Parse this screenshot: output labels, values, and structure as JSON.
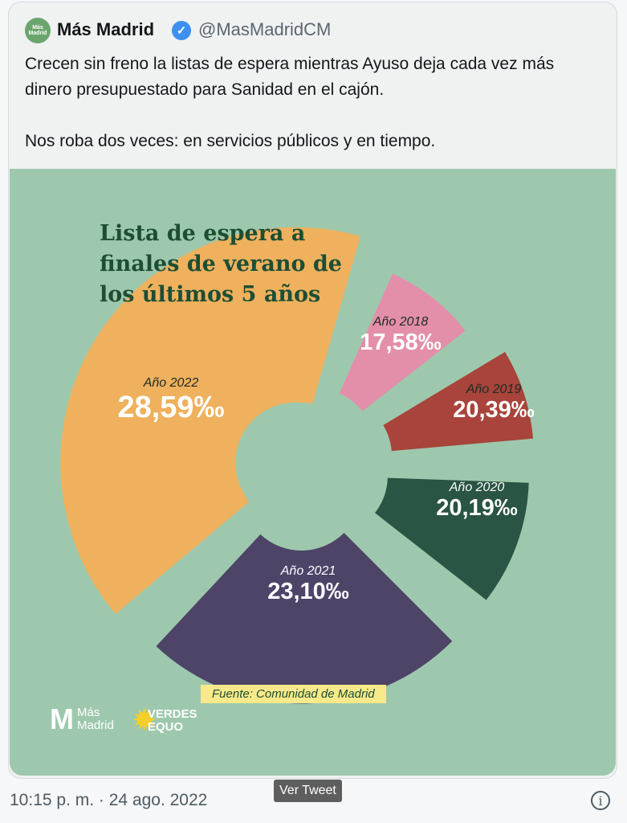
{
  "tweet": {
    "avatar_text": "Más Madrid",
    "author_name": "Más Madrid",
    "handle": "@MasMadridCM",
    "text_lines": [
      "Crecen sin freno la listas de espera mientras Ayuso deja cada vez más dinero presupuestado para Sanidad en el cajón.",
      "Nos roba dos veces: en servicios públicos y en tiempo."
    ],
    "timestamp": "10:15 p. m. · 24 ago. 2022",
    "tooltip": "Ver Tweet"
  },
  "image": {
    "source": "Fuente: Comunidad de Madrid",
    "logo_mas_madrid": "Más Madrid",
    "logo_verdes_equo": "VERDES EQUO"
  },
  "chart_data": {
    "type": "pie",
    "title": "Lista de espera a finales de verano de los últimos 5 años",
    "unit": "‰",
    "categories": [
      "Año 2018",
      "Año 2019",
      "Año 2020",
      "Año 2021",
      "Año 2022"
    ],
    "values": [
      17.58,
      20.39,
      20.19,
      23.1,
      28.59
    ],
    "value_labels": [
      "17,58‰",
      "20,39‰",
      "20,19‰",
      "23,10‰",
      "28,59‰"
    ],
    "colors": [
      "#e38fa9",
      "#a8443b",
      "#2a5443",
      "#4d4468",
      "#efb15d"
    ]
  }
}
